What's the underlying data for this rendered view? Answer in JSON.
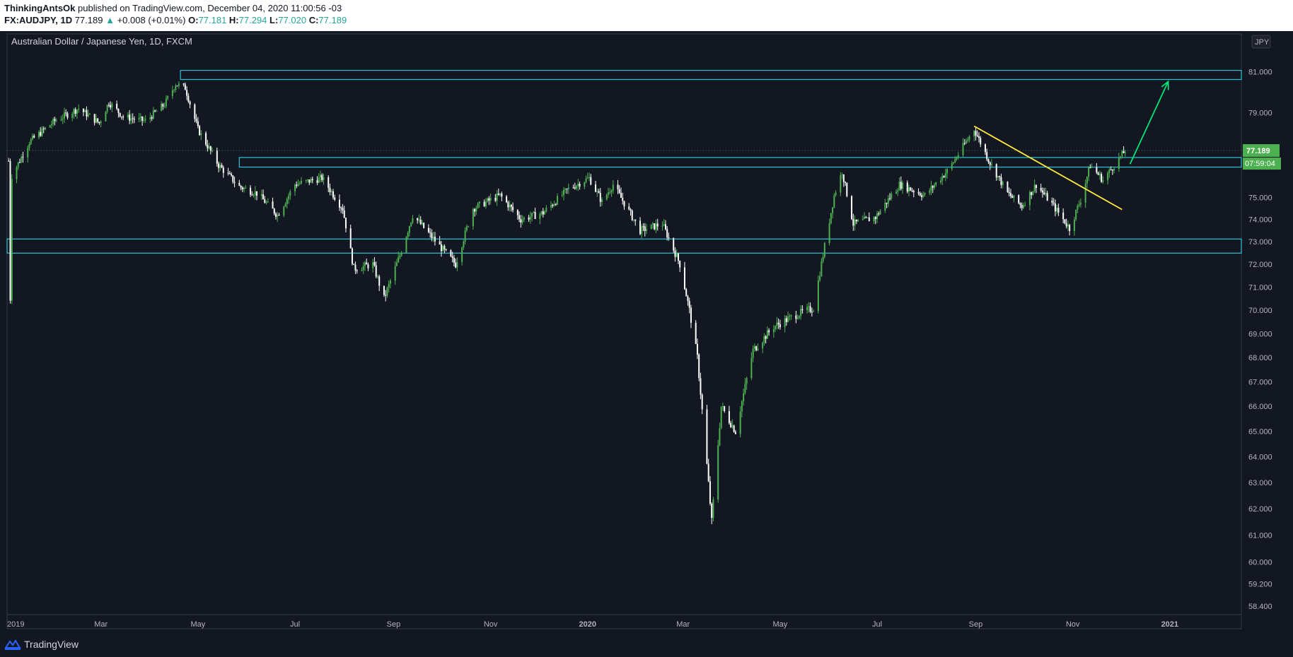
{
  "header": {
    "author": "ThinkingAntsOk",
    "published_text": "published on TradingView.com, December 04, 2020 11:00:56 -03",
    "symbol_line": "FX:AUDJPY, 1D",
    "last": "77.189",
    "change_arrow": "▲",
    "change": "+0.008 (+0.01%)",
    "o_label": "O:",
    "o": "77.181",
    "h_label": "H:",
    "h": "77.294",
    "l_label": "L:",
    "l": "77.020",
    "c_label": "C:",
    "c": "77.189"
  },
  "footer": {
    "brand": "TradingView"
  },
  "colors": {
    "background": "#131722",
    "up": "#4caf50",
    "down": "#ffffff",
    "zone": "#26c6da",
    "trendline": "#ffeb3b",
    "arrow": "#00e676",
    "price_tag": "#4caf50"
  },
  "chart_data": {
    "type": "candlestick",
    "title": "Australian Dollar / Japanese Yen, 1D, FXCM",
    "currency_label": "JPY",
    "last_price": 77.189,
    "last_price_label": "77.189",
    "countdown_label": "07:59:04",
    "x_tick_labels": [
      "2019",
      "Mar",
      "May",
      "Jul",
      "Sep",
      "Nov",
      "2020",
      "Mar",
      "May",
      "Jul",
      "Sep",
      "Nov",
      "2021"
    ],
    "x_range": [
      "2019-01-01",
      "2021-02-15"
    ],
    "y_tick_labels": [
      "81.000",
      "79.000",
      "77.189",
      "75.000",
      "74.000",
      "73.000",
      "72.000",
      "71.000",
      "70.000",
      "69.000",
      "68.000",
      "67.000",
      "66.000",
      "65.000",
      "64.000",
      "63.000",
      "62.000",
      "61.000",
      "60.000",
      "59.200",
      "58.400"
    ],
    "y_scale": "log",
    "y_range": [
      58.1,
      82.9
    ],
    "price_path": [
      [
        "2019-01-02",
        76.7
      ],
      [
        "2019-01-03",
        70.5
      ],
      [
        "2019-01-04",
        76.0
      ],
      [
        "2019-01-15",
        77.6
      ],
      [
        "2019-01-31",
        78.6
      ],
      [
        "2019-02-15",
        79.2
      ],
      [
        "2019-02-28",
        78.5
      ],
      [
        "2019-03-06",
        79.5
      ],
      [
        "2019-03-15",
        78.8
      ],
      [
        "2019-03-29",
        78.6
      ],
      [
        "2019-04-10",
        79.4
      ],
      [
        "2019-04-17",
        80.4
      ],
      [
        "2019-04-23",
        80.2
      ],
      [
        "2019-05-01",
        78.2
      ],
      [
        "2019-05-14",
        76.5
      ],
      [
        "2019-05-27",
        75.5
      ],
      [
        "2019-06-07",
        75.2
      ],
      [
        "2019-06-20",
        74.2
      ],
      [
        "2019-07-01",
        75.6
      ],
      [
        "2019-07-18",
        75.9
      ],
      [
        "2019-07-31",
        74.5
      ],
      [
        "2019-08-07",
        71.8
      ],
      [
        "2019-08-19",
        72.0
      ],
      [
        "2019-08-26",
        70.5
      ],
      [
        "2019-09-05",
        72.4
      ],
      [
        "2019-09-13",
        74.2
      ],
      [
        "2019-09-30",
        72.8
      ],
      [
        "2019-10-10",
        72.0
      ],
      [
        "2019-10-21",
        74.5
      ],
      [
        "2019-11-07",
        75.1
      ],
      [
        "2019-11-20",
        74.0
      ],
      [
        "2019-12-04",
        74.3
      ],
      [
        "2019-12-20",
        75.4
      ],
      [
        "2020-01-02",
        75.9
      ],
      [
        "2020-01-10",
        74.8
      ],
      [
        "2020-01-17",
        75.6
      ],
      [
        "2020-02-03",
        73.5
      ],
      [
        "2020-02-17",
        73.8
      ],
      [
        "2020-02-28",
        72.0
      ],
      [
        "2020-03-05",
        70.0
      ],
      [
        "2020-03-10",
        68.0
      ],
      [
        "2020-03-19",
        61.5
      ],
      [
        "2020-03-25",
        66.0
      ],
      [
        "2020-04-03",
        65.0
      ],
      [
        "2020-04-14",
        68.3
      ],
      [
        "2020-04-27",
        69.3
      ],
      [
        "2020-05-11",
        69.8
      ],
      [
        "2020-05-22",
        70.1
      ],
      [
        "2020-06-04",
        75.1
      ],
      [
        "2020-06-09",
        76.2
      ],
      [
        "2020-06-16",
        73.8
      ],
      [
        "2020-06-30",
        74.1
      ],
      [
        "2020-07-15",
        75.6
      ],
      [
        "2020-07-31",
        75.1
      ],
      [
        "2020-08-15",
        76.3
      ],
      [
        "2020-08-31",
        78.2
      ],
      [
        "2020-09-10",
        76.6
      ],
      [
        "2020-09-21",
        75.2
      ],
      [
        "2020-09-30",
        74.6
      ],
      [
        "2020-10-09",
        75.6
      ],
      [
        "2020-10-20",
        74.6
      ],
      [
        "2020-10-30",
        73.6
      ],
      [
        "2020-11-06",
        74.9
      ],
      [
        "2020-11-12",
        76.5
      ],
      [
        "2020-11-20",
        75.8
      ],
      [
        "2020-12-04",
        77.19
      ]
    ],
    "zones": [
      {
        "from": 80.62,
        "to": 81.07,
        "start": "2019-04-20"
      },
      {
        "from": 76.41,
        "to": 76.86,
        "start": "2019-05-27"
      },
      {
        "from": 72.49,
        "to": 73.12,
        "start": "2019-01-01"
      }
    ],
    "trendline": {
      "start": [
        "2020-08-31",
        78.35
      ],
      "end": [
        "2020-12-02",
        74.45
      ]
    },
    "projection_arrow": {
      "start": [
        "2020-12-07",
        76.55
      ],
      "end": [
        "2020-12-31",
        80.52
      ]
    }
  }
}
